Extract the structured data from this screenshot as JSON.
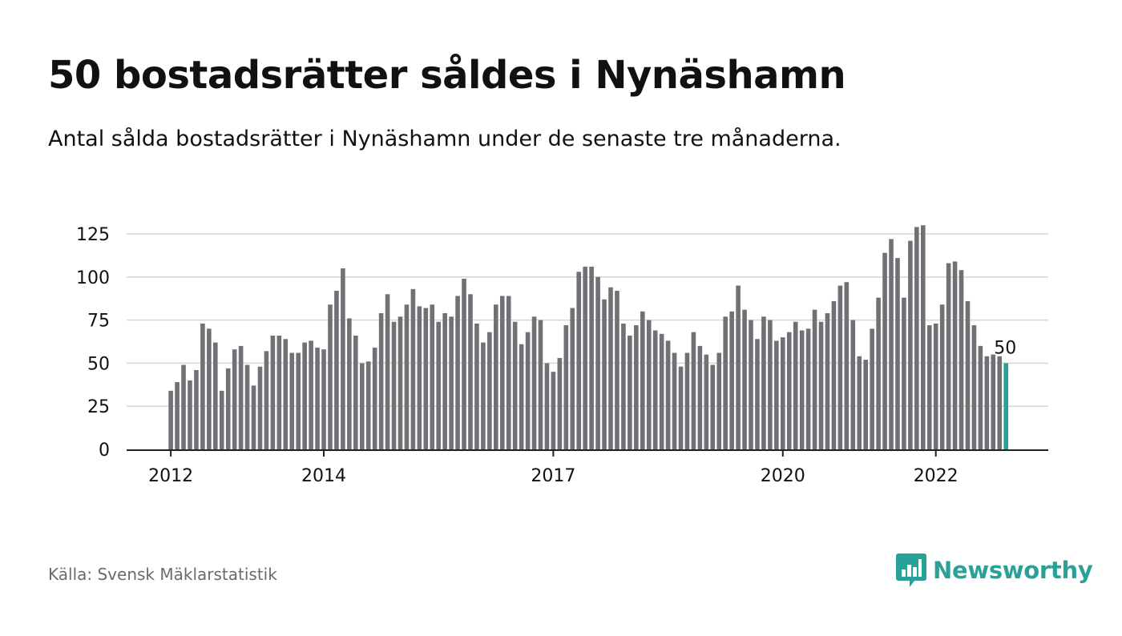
{
  "header": {
    "title": "50 bostadsrätter såldes i Nynäshamn",
    "subtitle": "Antal sålda bostadsrätter i Nynäshamn under de senaste tre månaderna."
  },
  "footer": {
    "source": "Källa: Svensk Mäklarstatistik",
    "brand_name": "Newsworthy",
    "brand_icon": "bar-chart-speech-bubble-icon"
  },
  "colors": {
    "bar": "#707075",
    "highlight": "#2aa198",
    "grid": "#d6d6d6",
    "axis": "#222222",
    "text": "#111111",
    "source": "#6b6b6b"
  },
  "chart_data": {
    "type": "bar",
    "title": "50 bostadsrätter såldes i Nynäshamn",
    "subtitle": "Antal sålda bostadsrätter i Nynäshamn under de senaste tre månaderna.",
    "xlabel": "",
    "ylabel": "",
    "ylim": [
      0,
      130
    ],
    "yticks": [
      0,
      25,
      50,
      75,
      100,
      125
    ],
    "grid": true,
    "legend": "none",
    "x_start": "2012-01",
    "frequency": "monthly",
    "x_ticks": [
      {
        "label": "2012",
        "index": 0
      },
      {
        "label": "2014",
        "index": 24
      },
      {
        "label": "2017",
        "index": 60
      },
      {
        "label": "2020",
        "index": 96
      },
      {
        "label": "2022",
        "index": 120
      }
    ],
    "highlight_label": "50",
    "values": [
      34,
      39,
      49,
      40,
      46,
      73,
      70,
      62,
      34,
      47,
      58,
      60,
      49,
      37,
      48,
      57,
      66,
      66,
      64,
      56,
      56,
      62,
      63,
      59,
      58,
      84,
      92,
      105,
      76,
      66,
      50,
      51,
      59,
      79,
      90,
      74,
      77,
      84,
      93,
      83,
      82,
      84,
      74,
      79,
      77,
      89,
      99,
      90,
      73,
      62,
      68,
      84,
      89,
      89,
      74,
      61,
      68,
      77,
      75,
      50,
      45,
      53,
      72,
      82,
      103,
      106,
      106,
      100,
      87,
      94,
      92,
      73,
      66,
      72,
      80,
      75,
      69,
      67,
      63,
      56,
      48,
      56,
      68,
      60,
      55,
      49,
      56,
      77,
      80,
      95,
      81,
      75,
      64,
      77,
      75,
      63,
      65,
      68,
      74,
      69,
      70,
      81,
      74,
      79,
      86,
      95,
      97,
      75,
      54,
      52,
      70,
      88,
      114,
      122,
      111,
      88,
      121,
      129,
      130,
      72,
      73,
      84,
      108,
      109,
      104,
      86,
      72,
      60,
      54,
      55,
      54,
      50
    ]
  }
}
